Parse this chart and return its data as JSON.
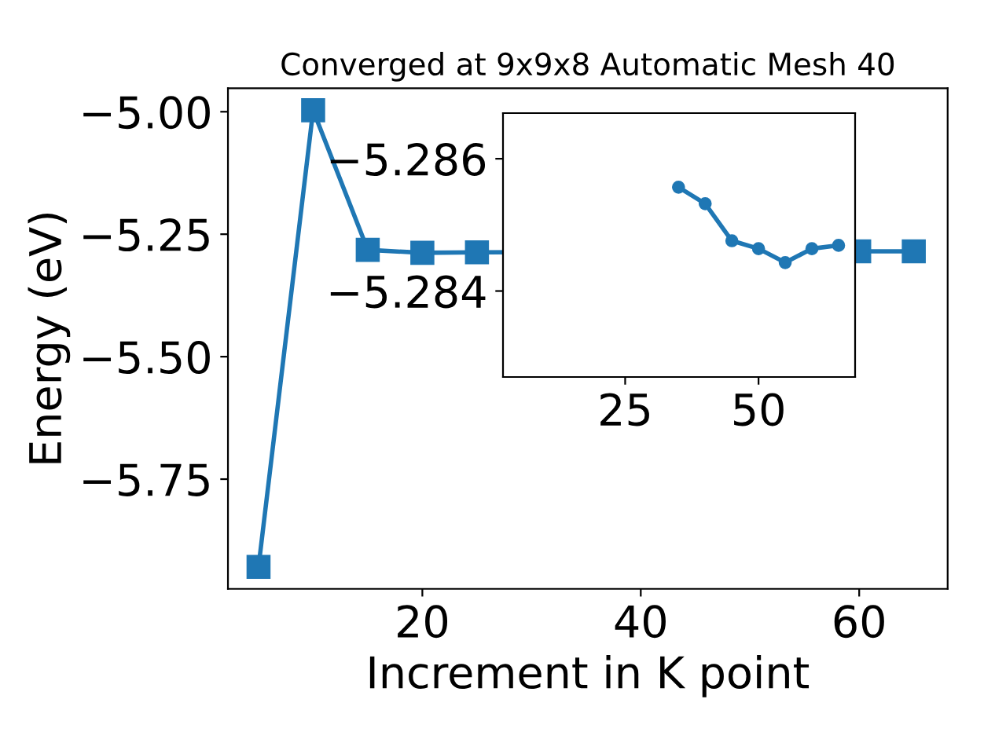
{
  "chart_data": [
    {
      "type": "line",
      "title": "Converged at 9x9x8 Automatic Mesh 40",
      "xlabel": "Increment in K point",
      "ylabel": "Energy (eV)",
      "marker": "square",
      "line_style": "solid",
      "grid": false,
      "legend": false,
      "x": [
        5,
        10,
        15,
        20,
        25,
        60,
        65
      ],
      "series": [
        {
          "color": "#1f77b4",
          "values": [
            -5.929,
            -4.997,
            -5.282,
            -5.288,
            -5.287,
            -5.285,
            -5.285
          ]
        }
      ],
      "xlim": [
        2.2,
        68.1
      ],
      "ylim": [
        -5.974,
        -4.952
      ],
      "xticks": [
        20,
        40,
        60
      ],
      "yticks": [
        {
          "value": -5.0,
          "label": "−5.00"
        },
        {
          "value": -5.25,
          "label": "−5.25"
        },
        {
          "value": -5.5,
          "label": "−5.50"
        },
        {
          "value": -5.75,
          "label": "−5.75"
        }
      ]
    },
    {
      "type": "line",
      "marker": "circle",
      "line_style": "solid",
      "grid": false,
      "legend": false,
      "x": [
        35,
        40,
        45,
        50,
        55,
        60,
        65
      ],
      "series": [
        {
          "color": "#1f77b4",
          "values": [
            -5.28557,
            -5.28532,
            -5.28476,
            -5.28464,
            -5.28443,
            -5.28464,
            -5.28469
          ]
        }
      ],
      "xlim": [
        2.1,
        68.1
      ],
      "ylim": [
        -5.2827,
        -5.28669
      ],
      "xticks": [
        25,
        50
      ],
      "yticks": [
        {
          "value": -5.286,
          "label": "−5.286"
        },
        {
          "value": -5.284,
          "label": "−5.284"
        }
      ]
    }
  ]
}
